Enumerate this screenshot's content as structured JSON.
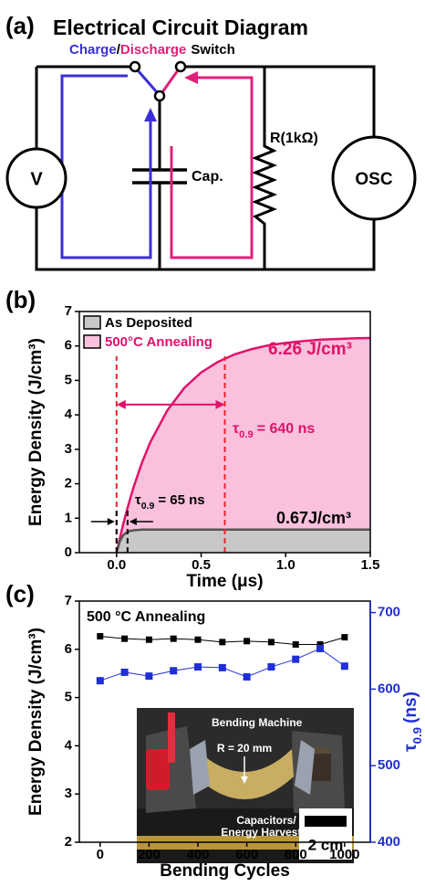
{
  "panel_labels": [
    "(a)",
    "(b)",
    "(c)"
  ],
  "circuit": {
    "title": "Electrical Circuit Diagram",
    "switch_label": [
      {
        "text": "Charge",
        "color": "#3a2fd6"
      },
      {
        "text": "/",
        "color": "#000000"
      },
      {
        "text": "Discharge",
        "color": "#e0207a"
      },
      {
        "text": "Switch",
        "color": "#000000"
      }
    ],
    "components": {
      "source": "V",
      "capacitor": "Cap.",
      "resistor": "R(1kΩ)",
      "scope": "OSC"
    }
  },
  "chart_data": [
    {
      "type": "area",
      "xlabel": "Time (μs)",
      "ylabel": "Energy Density (J/cm³)",
      "x": [
        0,
        0.02,
        0.04,
        0.06,
        0.08,
        0.1,
        0.15,
        0.2,
        0.3,
        0.4,
        0.5,
        0.6,
        0.7,
        0.8,
        0.9,
        1.0,
        1.1,
        1.2,
        1.3,
        1.4,
        1.5
      ],
      "series": [
        {
          "name": "500°C Annealing",
          "color": "#f9c1dd",
          "line_color": "#e0126b",
          "values": [
            0,
            0.43,
            0.84,
            1.21,
            1.56,
            1.89,
            2.61,
            3.21,
            4.13,
            4.78,
            5.23,
            5.54,
            5.76,
            5.91,
            6.02,
            6.09,
            6.14,
            6.18,
            6.2,
            6.22,
            6.23
          ]
        },
        {
          "name": "As Deposited",
          "color": "#c8c8c8",
          "line_color": "#555555",
          "values": [
            0,
            0.34,
            0.51,
            0.59,
            0.63,
            0.65,
            0.67,
            0.67,
            0.67,
            0.67,
            0.67,
            0.67,
            0.67,
            0.67,
            0.67,
            0.67,
            0.67,
            0.67,
            0.67,
            0.67,
            0.67
          ]
        }
      ],
      "legend_order": [
        1,
        0
      ],
      "legend": "upper left",
      "xlim": [
        -0.22,
        1.5
      ],
      "xticks": [
        {
          "value": 0,
          "label": "0.0"
        },
        {
          "value": 0.5,
          "label": "0.5"
        },
        {
          "value": 1,
          "label": "1.0"
        },
        {
          "value": 1.5,
          "label": "1.5"
        }
      ],
      "ylim": [
        0,
        7
      ],
      "yticks": [
        0,
        1,
        2,
        3,
        4,
        5,
        6,
        7
      ],
      "vlines": [
        {
          "x": 0,
          "color": "#e8262a"
        },
        {
          "x": 0.64,
          "color": "#e8262a"
        },
        {
          "x": 0,
          "color": "#000000"
        },
        {
          "x": 0.065,
          "color": "#000000"
        }
      ],
      "annotations": [
        {
          "text": "6.26 J/cm³",
          "color": "#e0126b"
        },
        {
          "text": "0.67J/cm³",
          "color": "#000000"
        }
      ],
      "tau_labels": [
        {
          "symbol": "τ",
          "subscript": "0.9",
          "text": "= 640 ns",
          "color": "#e0126b"
        },
        {
          "symbol": "τ",
          "subscript": "0.9",
          "text": "= 65 ns",
          "color": "#000000"
        }
      ]
    },
    {
      "type": "line",
      "title": "500 °C Annealing",
      "xlabel": "Bending Cycles",
      "ylabel": "Energy Density (J/cm³)",
      "y2label": {
        "symbol": "τ",
        "subscript": "0.9",
        "text": "(ns)",
        "color": "#1f2fd8"
      },
      "x": [
        0,
        100,
        200,
        300,
        400,
        500,
        600,
        700,
        800,
        900,
        1000
      ],
      "series": [
        {
          "color": "#000000",
          "values": [
            6.27,
            6.22,
            6.2,
            6.22,
            6.2,
            6.15,
            6.17,
            6.15,
            6.1,
            6.1,
            6.25
          ]
        },
        {
          "color": "#1f2fd8",
          "axis": "y2",
          "values": [
            611,
            622,
            617,
            624,
            629,
            628,
            616,
            629,
            639,
            653,
            630
          ]
        }
      ],
      "xlim": [
        -85,
        1105
      ],
      "xticks": [
        0,
        200,
        400,
        600,
        800,
        1000
      ],
      "ylim": [
        2,
        7
      ],
      "yticks": [
        2,
        3,
        4,
        5,
        6,
        7
      ],
      "y2lim": [
        400,
        715
      ],
      "y2ticks": [
        400,
        500,
        600,
        700
      ],
      "inset": {
        "labels": [
          "Bending Machine",
          "R = 20 mm"
        ],
        "sample_label": [
          "Capacitors/",
          "Energy Harvester"
        ],
        "scale_bar": "2 cm"
      }
    }
  ]
}
